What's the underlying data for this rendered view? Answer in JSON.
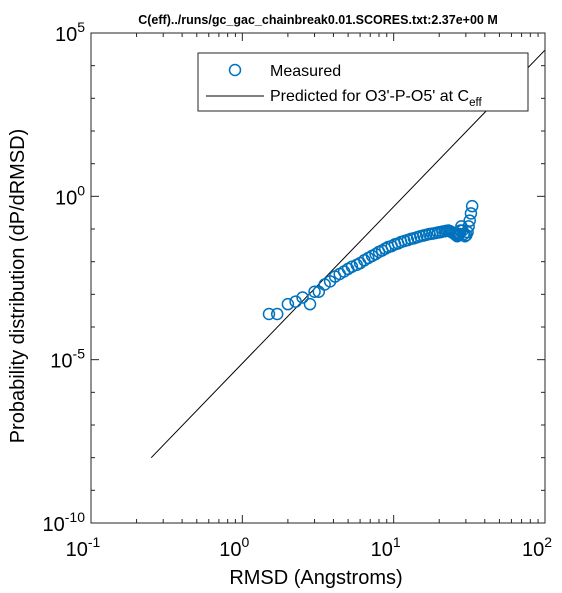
{
  "chart_data": {
    "type": "scatter",
    "title": "C(eff)../runs/gc_gac_chainbreak0.01.SCORES.txt:2.37e+00 M",
    "xlabel": "RMSD (Angstroms)",
    "ylabel": "Probability distribution (dP/dRMSD)",
    "xscale": "log",
    "yscale": "log",
    "xlim": [
      0.1,
      100
    ],
    "ylim": [
      1e-10,
      100000
    ],
    "x_ticks": [
      {
        "value": 0.1,
        "base": "10",
        "exp": "-1"
      },
      {
        "value": 1,
        "base": "10",
        "exp": "0"
      },
      {
        "value": 10,
        "base": "10",
        "exp": "1"
      },
      {
        "value": 100,
        "base": "10",
        "exp": "2"
      }
    ],
    "y_ticks": [
      {
        "value": 1e-10,
        "base": "10",
        "exp": "-10"
      },
      {
        "value": 1e-05,
        "base": "10",
        "exp": "-5"
      },
      {
        "value": 1,
        "base": "10",
        "exp": "0"
      },
      {
        "value": 100000,
        "base": "10",
        "exp": "5"
      }
    ],
    "legend_position": "top-right",
    "grid": false,
    "series": [
      {
        "name": "Measured",
        "style": "circle-markers",
        "color": "#0072BD",
        "x": [
          1.5,
          1.7,
          2.0,
          2.25,
          2.5,
          2.8,
          3.0,
          3.2,
          3.5,
          3.8,
          4.1,
          4.4,
          4.7,
          5.0,
          5.3,
          5.7,
          6.0,
          6.4,
          6.8,
          7.2,
          7.6,
          8.0,
          8.4,
          8.8,
          9.2,
          9.7,
          10.2,
          10.7,
          11.2,
          11.8,
          12.4,
          13.0,
          13.6,
          14.3,
          15.0,
          15.7,
          16.4,
          17.2,
          18.0,
          18.8,
          19.6,
          20.3,
          21.0,
          21.7,
          22.4,
          23.0,
          23.6,
          24.2,
          24.8,
          25.3,
          25.8,
          26.3,
          26.8,
          27.2,
          27.6,
          28.0,
          28.5,
          29.0,
          29.6,
          30.2,
          30.8,
          31.3,
          31.8,
          32.4,
          33.0
        ],
        "y": [
          0.00025,
          0.00025,
          0.0005,
          0.0006,
          0.0008,
          0.0005,
          0.0012,
          0.0012,
          0.002,
          0.0025,
          0.0035,
          0.0042,
          0.005,
          0.006,
          0.007,
          0.008,
          0.009,
          0.011,
          0.013,
          0.015,
          0.017,
          0.02,
          0.022,
          0.025,
          0.028,
          0.03,
          0.034,
          0.036,
          0.04,
          0.043,
          0.046,
          0.05,
          0.052,
          0.056,
          0.06,
          0.063,
          0.066,
          0.07,
          0.072,
          0.075,
          0.078,
          0.08,
          0.083,
          0.085,
          0.088,
          0.09,
          0.085,
          0.08,
          0.075,
          0.07,
          0.065,
          0.06,
          0.065,
          0.07,
          0.09,
          0.12,
          0.09,
          0.07,
          0.06,
          0.065,
          0.08,
          0.12,
          0.18,
          0.3,
          0.5
        ]
      },
      {
        "name": "Predicted for O3'-P-O5' at Ceff",
        "style": "line",
        "color": "#000000",
        "x": [
          0.25,
          100
        ],
        "y": [
          1e-08,
          30000
        ]
      }
    ]
  },
  "legend": {
    "measured_label": "Measured",
    "predicted_main": "Predicted for O3'-P-O5' at C",
    "predicted_sub": "eff"
  }
}
